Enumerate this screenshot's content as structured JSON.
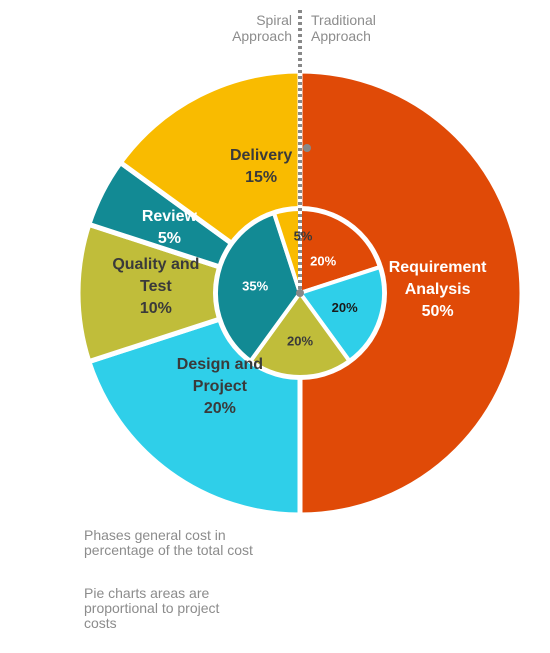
{
  "chart_data": [
    {
      "type": "pie",
      "series_label": [
        "Traditional",
        "Approach"
      ],
      "slices": [
        {
          "label": [
            "Requirement",
            "Analysis"
          ],
          "value": 50,
          "value_text": "50%",
          "color": "#e04a07",
          "text_color": "#ffffff"
        },
        {
          "label": [
            "Design and",
            "Project"
          ],
          "value": 20,
          "value_text": "20%",
          "color": "#2fcfe9",
          "text_color": "#3a3a3a"
        },
        {
          "label": [
            "Quality and",
            "Test"
          ],
          "value": 10,
          "value_text": "10%",
          "color": "#c0bd3a",
          "text_color": "#3a3a3a"
        },
        {
          "label": [
            "Review"
          ],
          "value": 5,
          "value_text": "5%",
          "color": "#128a94",
          "text_color": "#ffffff"
        },
        {
          "label": [
            "Delivery"
          ],
          "value": 15,
          "value_text": "15%",
          "color": "#f9bb00",
          "text_color": "#3a3a3a"
        }
      ]
    },
    {
      "type": "pie",
      "series_label": [
        "Spiral",
        "Approach"
      ],
      "slices": [
        {
          "value": 20,
          "value_text": "20%",
          "color": "#e04a07",
          "text_color": "#ffffff"
        },
        {
          "value": 20,
          "value_text": "20%",
          "color": "#2fcfe9",
          "text_color": "#1a1a1a"
        },
        {
          "value": 20,
          "value_text": "20%",
          "color": "#c0bd3a",
          "text_color": "#3a3a3a"
        },
        {
          "value": 35,
          "value_text": "35%",
          "color": "#128a94",
          "text_color": "#ffffff"
        },
        {
          "value": 5,
          "value_text": "5%",
          "color": "#f9bb00",
          "text_color": "#3a3a3a"
        }
      ]
    }
  ],
  "notes": [
    [
      "Phases general cost in",
      "percentage of the total cost"
    ],
    [
      "Pie charts areas are",
      "proportional to project",
      "costs"
    ]
  ],
  "divider_color": "#888888"
}
